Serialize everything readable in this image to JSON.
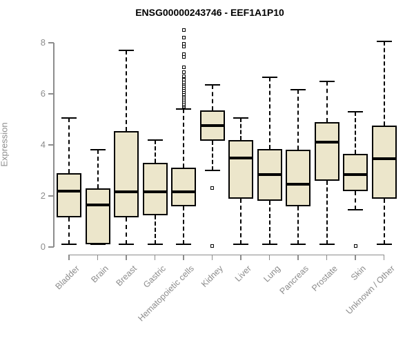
{
  "title": "ENSG00000243746 - EEF1A1P10",
  "y_axis": {
    "label": "Expression"
  },
  "chart_data": {
    "type": "boxplot",
    "title": "ENSG00000243746 - EEF1A1P10",
    "xlabel": "",
    "ylabel": "Expression",
    "ylim": [
      0,
      8.6
    ],
    "yticks": [
      0,
      2,
      4,
      6,
      8
    ],
    "grid": false,
    "legend": "none",
    "categories": [
      "Bladder",
      "Brain",
      "Breast",
      "Gastric",
      "Hematopoietic cells",
      "Kidney",
      "Liver",
      "Lung",
      "Pancreas",
      "Prostate",
      "Skin",
      "Unknown / Other"
    ],
    "series": [
      {
        "category": "Bladder",
        "whisker_low": 0.1,
        "q1": 1.15,
        "median": 2.2,
        "q3": 2.9,
        "whisker_high": 5.05,
        "outliers": []
      },
      {
        "category": "Brain",
        "whisker_low": 0.1,
        "q1": 0.1,
        "median": 1.65,
        "q3": 2.3,
        "whisker_high": 3.8,
        "outliers": []
      },
      {
        "category": "Breast",
        "whisker_low": 0.1,
        "q1": 1.15,
        "median": 2.15,
        "q3": 4.55,
        "whisker_high": 7.7,
        "outliers": []
      },
      {
        "category": "Gastric",
        "whisker_low": 0.1,
        "q1": 1.25,
        "median": 2.15,
        "q3": 3.3,
        "whisker_high": 4.2,
        "outliers": []
      },
      {
        "category": "Hematopoietic cells",
        "whisker_low": 0.1,
        "q1": 1.6,
        "median": 2.15,
        "q3": 3.1,
        "whisker_high": 5.4,
        "outliers": [
          5.5,
          5.56,
          5.62,
          5.7,
          5.78,
          5.85,
          5.92,
          6.0,
          6.08,
          6.15,
          6.22,
          6.3,
          6.38,
          6.45,
          6.55,
          6.7,
          6.85,
          7.05,
          7.45,
          7.55,
          7.85,
          7.95,
          8.2,
          8.5
        ]
      },
      {
        "category": "Kidney",
        "whisker_low": 3.0,
        "q1": 4.15,
        "median": 4.75,
        "q3": 5.35,
        "whisker_high": 6.35,
        "outliers": [
          2.3,
          0.05
        ]
      },
      {
        "category": "Liver",
        "whisker_low": 0.1,
        "q1": 1.9,
        "median": 3.5,
        "q3": 4.2,
        "whisker_high": 5.05,
        "outliers": []
      },
      {
        "category": "Lung",
        "whisker_low": 0.1,
        "q1": 1.8,
        "median": 2.85,
        "q3": 3.85,
        "whisker_high": 6.65,
        "outliers": []
      },
      {
        "category": "Pancreas",
        "whisker_low": 0.1,
        "q1": 1.6,
        "median": 2.45,
        "q3": 3.8,
        "whisker_high": 6.15,
        "outliers": []
      },
      {
        "category": "Prostate",
        "whisker_low": 0.1,
        "q1": 2.6,
        "median": 4.1,
        "q3": 4.9,
        "whisker_high": 6.5,
        "outliers": []
      },
      {
        "category": "Skin",
        "whisker_low": 1.45,
        "q1": 2.2,
        "median": 2.85,
        "q3": 3.65,
        "whisker_high": 5.3,
        "outliers": [
          0.05
        ]
      },
      {
        "category": "Unknown / Other",
        "whisker_low": 0.1,
        "q1": 1.9,
        "median": 3.45,
        "q3": 4.75,
        "whisker_high": 8.05,
        "outliers": []
      }
    ],
    "style": {
      "box_fill": "#ECE6CB",
      "box_border": "#000000",
      "median_color": "#000000",
      "whisker_color": "#000000",
      "axis_color": "#8C8C8C",
      "tick_label_color": "#8C8C8C",
      "title_color": "#000000",
      "outlier_shape": "open-square"
    }
  }
}
